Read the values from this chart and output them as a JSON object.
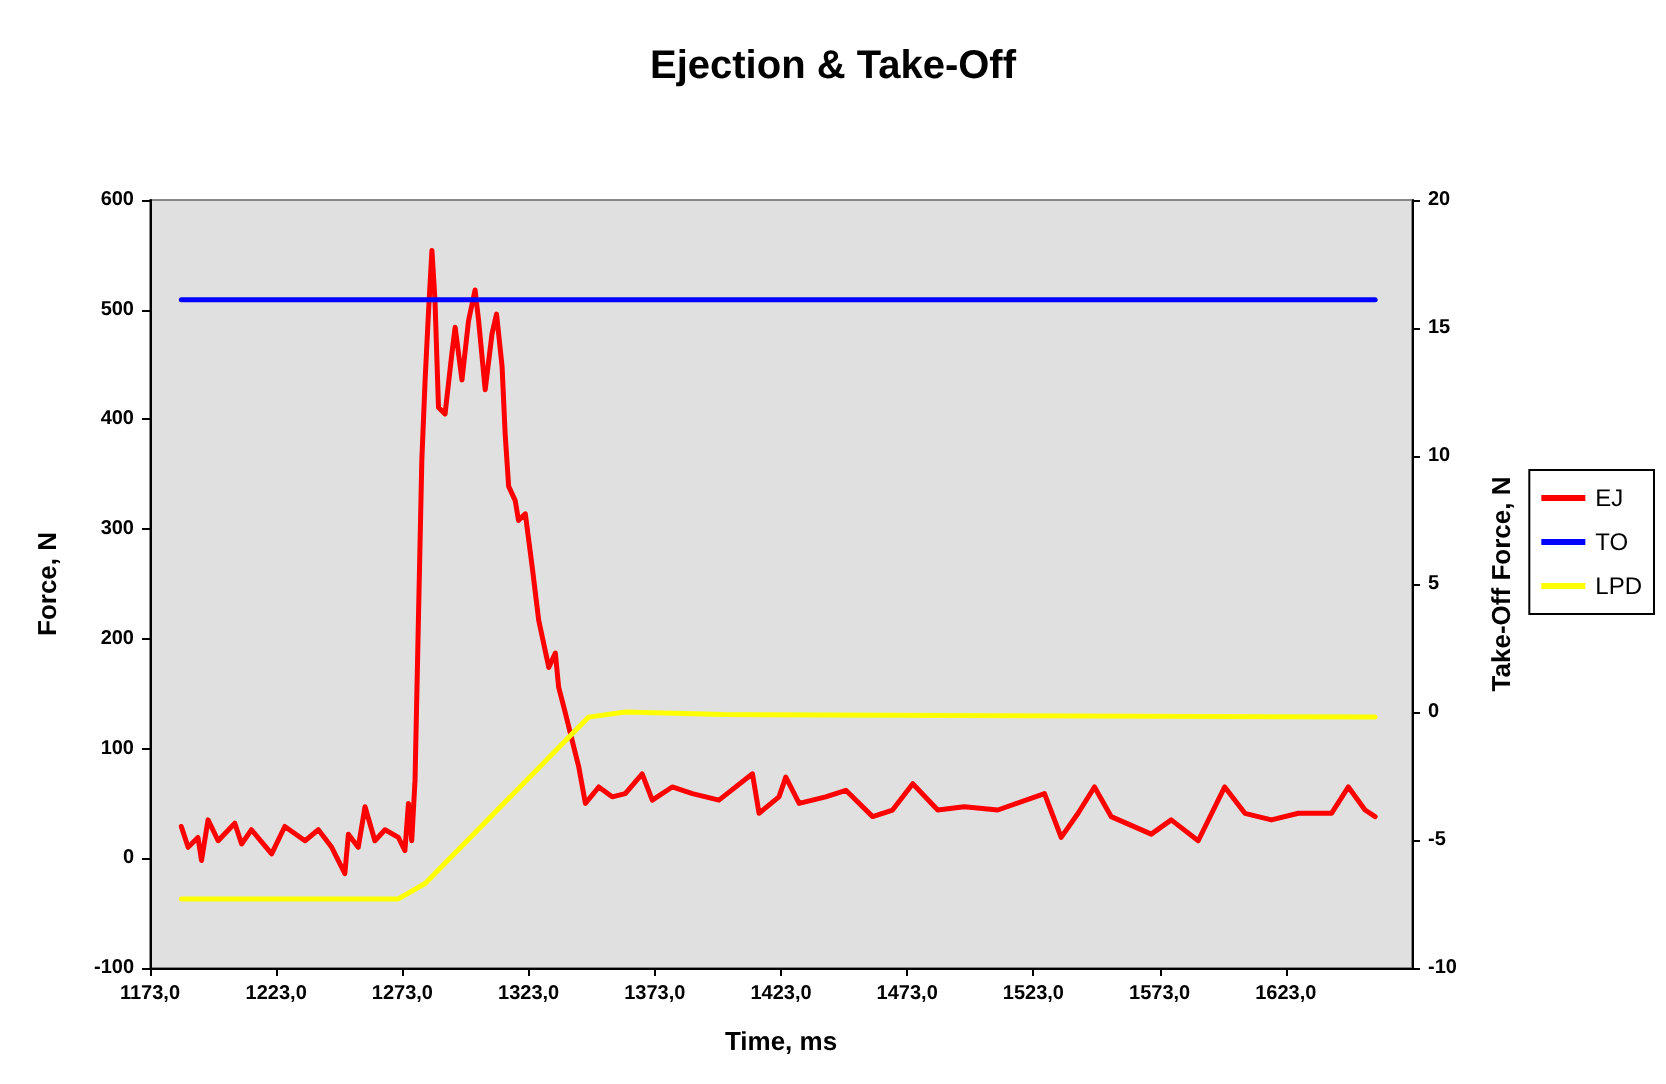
{
  "chart_data": {
    "type": "line",
    "title": "Ejection & Take-Off",
    "xlabel": "Time, ms",
    "ylabel": "Force, N",
    "y2label": "Take-Off Force, N",
    "xlim": [
      1173,
      1673
    ],
    "xticks": [
      {
        "value": 1173,
        "label": "1173,0"
      },
      {
        "value": 1223,
        "label": "1223,0"
      },
      {
        "value": 1273,
        "label": "1273,0"
      },
      {
        "value": 1323,
        "label": "1323,0"
      },
      {
        "value": 1373,
        "label": "1373,0"
      },
      {
        "value": 1423,
        "label": "1423,0"
      },
      {
        "value": 1473,
        "label": "1473,0"
      },
      {
        "value": 1523,
        "label": "1523,0"
      },
      {
        "value": 1573,
        "label": "1573,0"
      },
      {
        "value": 1623,
        "label": "1623,0"
      }
    ],
    "ylim": [
      -100,
      600
    ],
    "yticks": [
      -100,
      0,
      100,
      200,
      300,
      400,
      500,
      600
    ],
    "y2lim": [
      -10,
      20
    ],
    "y2ticks": [
      -10,
      -5,
      0,
      5,
      10,
      15,
      20
    ],
    "grid": false,
    "legend": "right",
    "marker": "none",
    "line_style": "solid",
    "series": [
      {
        "name": "EJ",
        "color": "#ff0000",
        "x": [
          1185.4,
          1188.1,
          1192.0,
          1193.4,
          1196.0,
          1200.0,
          1206.6,
          1209.3,
          1213.2,
          1221.2,
          1226.4,
          1234.4,
          1239.7,
          1245.0,
          1250.2,
          1251.6,
          1255.5,
          1258.2,
          1262.1,
          1266.1,
          1271.4,
          1274.0,
          1275.4,
          1276.7,
          1278.0,
          1279.4,
          1280.7,
          1282.0,
          1283.3,
          1284.7,
          1285.9,
          1287.3,
          1289.9,
          1292.6,
          1293.9,
          1296.6,
          1299.2,
          1301.8,
          1303.2,
          1305.8,
          1308.5,
          1310.3,
          1312.5,
          1313.7,
          1315.1,
          1317.7,
          1319.0,
          1321.7,
          1324.4,
          1327.0,
          1331.0,
          1333.6,
          1334.9,
          1337.6,
          1340.2,
          1342.9,
          1345.5,
          1350.8,
          1356.1,
          1361.3,
          1368.0,
          1372.0,
          1379.9,
          1387.9,
          1398.4,
          1411.7,
          1414.3,
          1422.2,
          1424.9,
          1430.2,
          1440.7,
          1448.7,
          1459.3,
          1467.2,
          1475.2,
          1485.1,
          1495.6,
          1508.9,
          1527.4,
          1534.0,
          1540.7,
          1547.2,
          1553.8,
          1569.7,
          1577.6,
          1588.3,
          1598.8,
          1606.8,
          1617.3,
          1628.0,
          1641.1,
          1647.8,
          1654.4,
          1658.4
        ],
        "values": [
          29,
          10,
          19,
          -2,
          35,
          16,
          32,
          13,
          26,
          4,
          29,
          16,
          26,
          10,
          -14,
          22,
          10,
          47,
          16,
          26,
          19,
          7,
          50,
          16,
          71,
          223,
          363,
          436,
          496,
          554,
          509,
          411,
          405,
          460,
          484,
          436,
          490,
          518,
          490,
          427,
          478,
          496,
          448,
          387,
          339,
          326,
          308,
          314,
          266,
          217,
          174,
          187,
          156,
          132,
          108,
          83,
          50,
          65,
          56,
          59,
          77,
          53,
          65,
          59,
          53,
          77,
          41,
          56,
          74,
          50,
          56,
          62,
          38,
          44,
          68,
          44,
          47,
          44,
          59,
          19,
          41,
          65,
          38,
          22,
          35,
          16,
          65,
          41,
          35,
          41,
          41,
          65,
          44,
          38
        ]
      },
      {
        "name": "TO",
        "color": "#0000ff",
        "axis": "y2",
        "x": [
          1185.4,
          1658.4
        ],
        "values": [
          16.1,
          16.1
        ]
      },
      {
        "name": "LPD",
        "color": "#ffff00",
        "axis": "y2",
        "x": [
          1185.4,
          1271.4,
          1282.0,
          1346.8,
          1361.3,
          1400.0,
          1658.4
        ],
        "values": [
          -7.3,
          -7.3,
          -6.7,
          -0.2,
          0.0,
          -0.1,
          -0.2
        ]
      }
    ]
  }
}
